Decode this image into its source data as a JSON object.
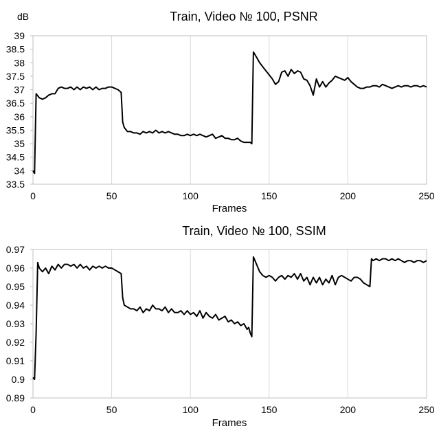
{
  "chart_data": [
    {
      "type": "line",
      "title": "Train, Video № 100, PSNR",
      "xlabel": "Frames",
      "ylabel": "dB",
      "xlim": [
        0,
        250
      ],
      "ylim": [
        33.5,
        39
      ],
      "xticks": [
        0,
        50,
        100,
        150,
        200,
        250
      ],
      "yticks": [
        33.5,
        34,
        34.5,
        35,
        35.5,
        36,
        36.5,
        37,
        37.5,
        38,
        38.5,
        39
      ],
      "ytick_labels": [
        "33.5",
        "34",
        "34.5",
        "35",
        "35.5",
        "36",
        "36.5",
        "37",
        "37.5",
        "38",
        "38.5",
        "39"
      ],
      "grid": "vertical",
      "series": [
        {
          "x": [
            0,
            1,
            2,
            4,
            6,
            8,
            10,
            12,
            14,
            16,
            18,
            20,
            22,
            24,
            26,
            28,
            30,
            32,
            34,
            36,
            38,
            40,
            42,
            44,
            46,
            48,
            50,
            52,
            54,
            56,
            57,
            58,
            60,
            62,
            64,
            66,
            68,
            70,
            72,
            74,
            76,
            78,
            80,
            82,
            84,
            86,
            88,
            90,
            92,
            94,
            96,
            98,
            100,
            102,
            104,
            106,
            108,
            110,
            112,
            114,
            116,
            118,
            120,
            122,
            124,
            126,
            128,
            130,
            132,
            134,
            136,
            138,
            139,
            140,
            142,
            144,
            146,
            148,
            150,
            152,
            154,
            156,
            158,
            160,
            162,
            164,
            166,
            168,
            170,
            172,
            174,
            176,
            178,
            180,
            182,
            184,
            186,
            188,
            190,
            192,
            194,
            196,
            198,
            200,
            202,
            204,
            206,
            208,
            210,
            212,
            214,
            216,
            218,
            220,
            222,
            224,
            226,
            228,
            230,
            232,
            234,
            236,
            238,
            240,
            242,
            244,
            246,
            248,
            250
          ],
          "y": [
            34.0,
            33.9,
            36.85,
            36.7,
            36.65,
            36.7,
            36.8,
            36.85,
            36.85,
            37.05,
            37.1,
            37.05,
            37.05,
            37.1,
            37.0,
            37.1,
            37.0,
            37.1,
            37.05,
            37.1,
            37.0,
            37.1,
            37.0,
            37.05,
            37.05,
            37.1,
            37.1,
            37.05,
            37.0,
            36.9,
            35.8,
            35.6,
            35.45,
            35.45,
            35.4,
            35.4,
            35.35,
            35.45,
            35.4,
            35.45,
            35.4,
            35.5,
            35.4,
            35.45,
            35.4,
            35.45,
            35.4,
            35.35,
            35.35,
            35.3,
            35.3,
            35.35,
            35.3,
            35.35,
            35.3,
            35.35,
            35.3,
            35.25,
            35.3,
            35.35,
            35.2,
            35.25,
            35.3,
            35.2,
            35.2,
            35.15,
            35.15,
            35.2,
            35.1,
            35.05,
            35.05,
            35.05,
            35.0,
            38.4,
            38.2,
            38.0,
            37.85,
            37.7,
            37.55,
            37.4,
            37.2,
            37.3,
            37.65,
            37.7,
            37.5,
            37.75,
            37.6,
            37.7,
            37.65,
            37.4,
            37.35,
            37.15,
            36.8,
            37.4,
            37.1,
            37.3,
            37.1,
            37.25,
            37.35,
            37.5,
            37.45,
            37.4,
            37.35,
            37.45,
            37.3,
            37.2,
            37.1,
            37.05,
            37.05,
            37.1,
            37.1,
            37.15,
            37.15,
            37.1,
            37.2,
            37.15,
            37.1,
            37.05,
            37.1,
            37.15,
            37.1,
            37.15,
            37.15,
            37.1,
            37.15,
            37.15,
            37.1,
            37.15,
            37.1
          ]
        }
      ]
    },
    {
      "type": "line",
      "title": "Train, Video № 100, SSIM",
      "xlabel": "Frames",
      "ylabel": "",
      "xlim": [
        0,
        250
      ],
      "ylim": [
        0.89,
        0.97
      ],
      "xticks": [
        0,
        50,
        100,
        150,
        200,
        250
      ],
      "yticks": [
        0.89,
        0.9,
        0.91,
        0.92,
        0.93,
        0.94,
        0.95,
        0.96,
        0.97
      ],
      "ytick_labels": [
        "0.89",
        "0.9",
        "0.91",
        "0.92",
        "0.93",
        "0.94",
        "0.95",
        "0.96",
        "0.97"
      ],
      "grid": "vertical",
      "series": [
        {
          "x": [
            0,
            1,
            2,
            3,
            4,
            6,
            8,
            10,
            12,
            14,
            16,
            18,
            20,
            22,
            24,
            26,
            28,
            30,
            32,
            34,
            36,
            38,
            40,
            42,
            44,
            46,
            48,
            50,
            52,
            54,
            56,
            57,
            58,
            60,
            62,
            64,
            66,
            68,
            70,
            72,
            74,
            76,
            78,
            80,
            82,
            84,
            86,
            88,
            90,
            92,
            94,
            96,
            98,
            100,
            102,
            104,
            106,
            108,
            110,
            112,
            114,
            116,
            118,
            120,
            122,
            124,
            126,
            128,
            130,
            132,
            134,
            136,
            137,
            138,
            139,
            140,
            142,
            144,
            146,
            148,
            150,
            152,
            154,
            156,
            158,
            160,
            162,
            164,
            166,
            168,
            170,
            172,
            174,
            176,
            178,
            180,
            182,
            184,
            186,
            188,
            190,
            192,
            194,
            196,
            198,
            200,
            202,
            204,
            206,
            208,
            210,
            212,
            214,
            215,
            216,
            218,
            220,
            222,
            224,
            226,
            228,
            230,
            232,
            234,
            236,
            238,
            240,
            242,
            244,
            246,
            248,
            250
          ],
          "y": [
            0.901,
            0.9,
            0.925,
            0.963,
            0.96,
            0.958,
            0.96,
            0.957,
            0.961,
            0.959,
            0.962,
            0.96,
            0.962,
            0.962,
            0.961,
            0.962,
            0.96,
            0.962,
            0.96,
            0.961,
            0.959,
            0.961,
            0.96,
            0.961,
            0.96,
            0.961,
            0.96,
            0.96,
            0.959,
            0.958,
            0.957,
            0.944,
            0.94,
            0.939,
            0.938,
            0.938,
            0.937,
            0.939,
            0.936,
            0.938,
            0.937,
            0.94,
            0.938,
            0.938,
            0.937,
            0.939,
            0.936,
            0.938,
            0.936,
            0.936,
            0.937,
            0.935,
            0.937,
            0.935,
            0.936,
            0.934,
            0.937,
            0.933,
            0.936,
            0.934,
            0.933,
            0.935,
            0.932,
            0.933,
            0.934,
            0.931,
            0.932,
            0.93,
            0.931,
            0.929,
            0.93,
            0.927,
            0.928,
            0.925,
            0.923,
            0.966,
            0.962,
            0.958,
            0.956,
            0.955,
            0.956,
            0.955,
            0.953,
            0.955,
            0.956,
            0.954,
            0.956,
            0.955,
            0.957,
            0.954,
            0.957,
            0.953,
            0.955,
            0.951,
            0.955,
            0.952,
            0.955,
            0.951,
            0.954,
            0.952,
            0.956,
            0.951,
            0.955,
            0.956,
            0.955,
            0.954,
            0.953,
            0.955,
            0.955,
            0.954,
            0.952,
            0.951,
            0.95,
            0.965,
            0.964,
            0.965,
            0.964,
            0.965,
            0.965,
            0.964,
            0.965,
            0.964,
            0.965,
            0.964,
            0.963,
            0.964,
            0.964,
            0.963,
            0.964,
            0.964,
            0.963,
            0.964
          ]
        }
      ]
    }
  ]
}
